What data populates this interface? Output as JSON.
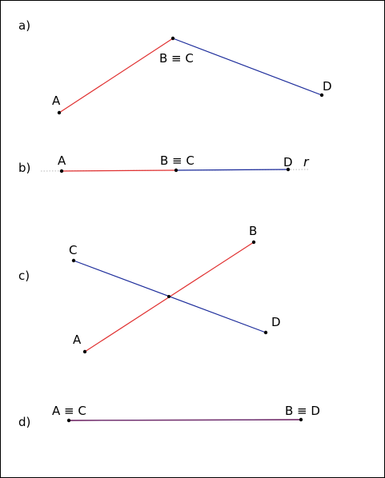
{
  "colors": {
    "segment_ab": "#e03030",
    "segment_cd": "#1a2a9a",
    "overlap": "#6a2a7a",
    "line_r": "#b8b8b8",
    "point": "#000000"
  },
  "panels": {
    "a": {
      "tag": "a)",
      "labels": {
        "A": "A",
        "BC": "B ≡ C",
        "D": "D"
      }
    },
    "b": {
      "tag": "b)",
      "labels": {
        "A": "A",
        "BC": "B ≡ C",
        "D": "D",
        "r": "r"
      }
    },
    "c": {
      "tag": "c)",
      "labels": {
        "A": "A",
        "B": "B",
        "C": "C",
        "D": "D"
      }
    },
    "d": {
      "tag": "d)",
      "labels": {
        "AC": "A ≡ C",
        "BD": "B ≡ D"
      }
    }
  }
}
